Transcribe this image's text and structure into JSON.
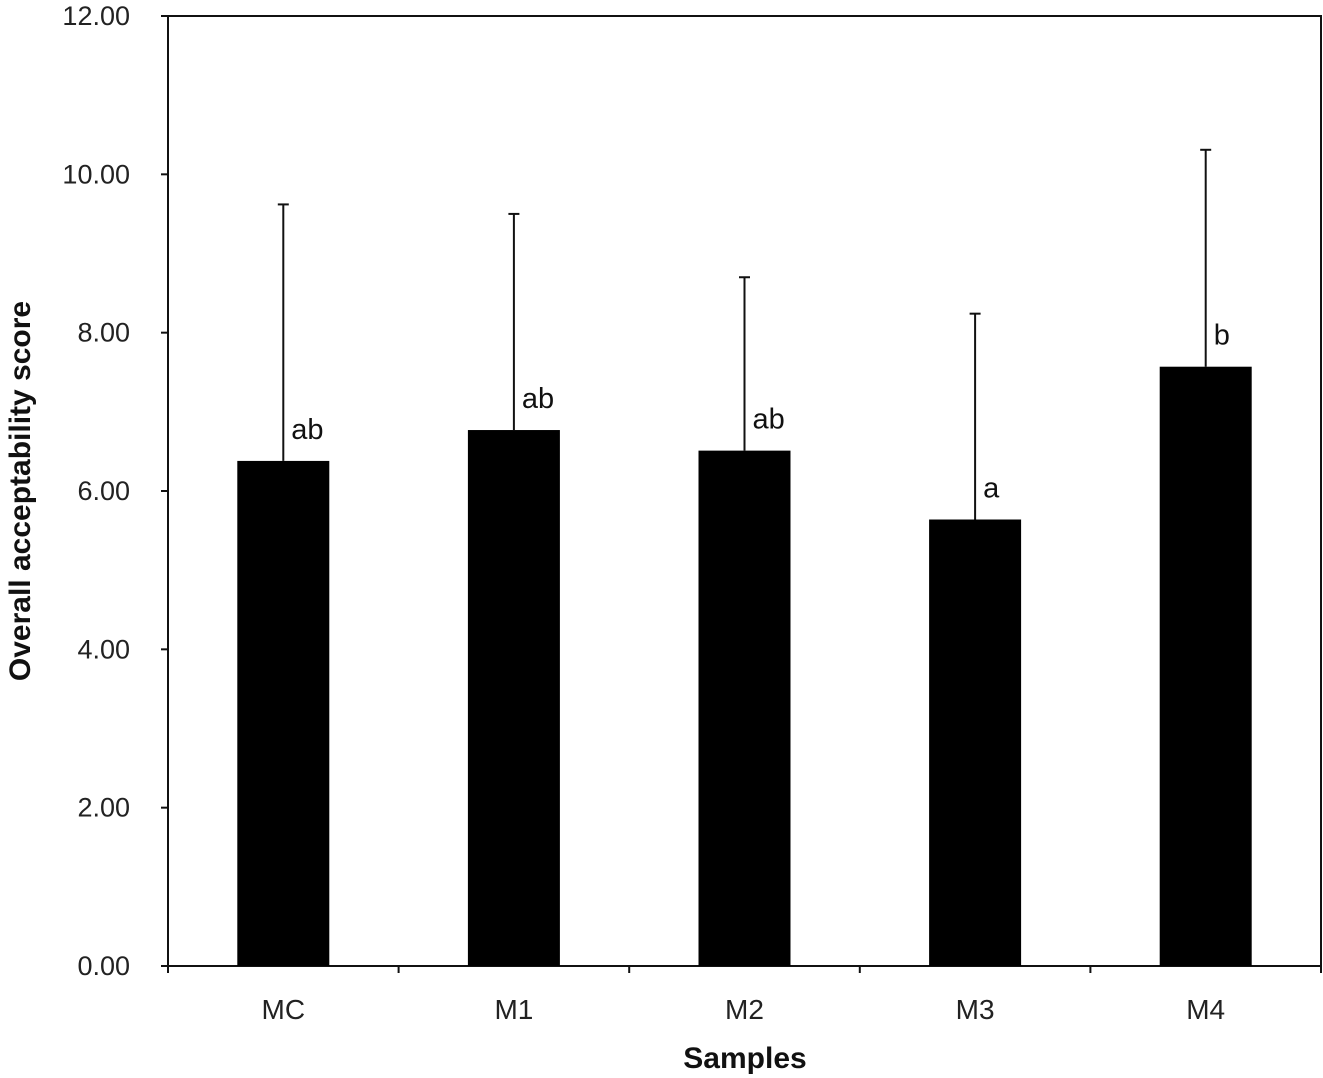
{
  "chart_data": {
    "type": "bar",
    "xlabel": "Samples",
    "ylabel": "Overall acceptability score",
    "ylim": [
      0,
      12
    ],
    "yticks": [
      "0.00",
      "2.00",
      "4.00",
      "6.00",
      "8.00",
      "10.00",
      "12.00"
    ],
    "categories": [
      "MC",
      "M1",
      "M2",
      "M3",
      "M4"
    ],
    "values": [
      6.38,
      6.77,
      6.51,
      5.64,
      7.57
    ],
    "error_upper": [
      9.62,
      9.5,
      8.7,
      8.24,
      10.31
    ],
    "significance_labels": [
      "ab",
      "ab",
      "ab",
      "a",
      "b"
    ],
    "bar_color": "#000000",
    "grid": false,
    "legend": "none"
  }
}
